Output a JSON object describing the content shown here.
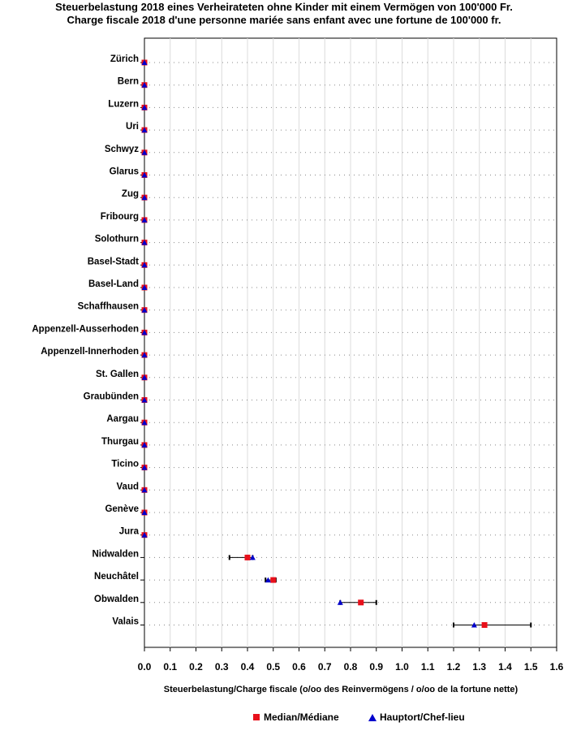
{
  "chart_data": {
    "type": "scatter",
    "title": "Steuerbelastung 2018 eines Verheirateten ohne Kinder mit einem Vermögen von 100'000 Fr.",
    "subtitle": "Charge fiscale 2018 d'une personne mariée sans enfant avec une fortune de 100'000 fr.",
    "xlabel": "Steuerbelastung/Charge fiscale (o/oo des Reinvermögens / o/oo de la fortune nette)",
    "xlim": [
      0,
      1.6
    ],
    "xticks": [
      "0.0",
      "0.1",
      "0.2",
      "0.3",
      "0.4",
      "0.5",
      "0.6",
      "0.7",
      "0.8",
      "0.9",
      "1.0",
      "1.1",
      "1.2",
      "1.3",
      "1.4",
      "1.5",
      "1.6"
    ],
    "grid": true,
    "legend_position": "bottom",
    "colors": {
      "median": "#e8101b",
      "chef_lieu": "#0000cc",
      "range": "#000000"
    },
    "legend": {
      "median": "Median/Médiane",
      "chef_lieu": "Hauptort/Chef-lieu"
    },
    "categories": [
      "Zürich",
      "Bern",
      "Luzern",
      "Uri",
      "Schwyz",
      "Glarus",
      "Zug",
      "Fribourg",
      "Solothurn",
      "Basel-Stadt",
      "Basel-Land",
      "Schaffhausen",
      "Appenzell-Ausserhoden",
      "Appenzell-Innerhoden",
      "St. Gallen",
      "Graubünden",
      "Aargau",
      "Thurgau",
      "Ticino",
      "Vaud",
      "Genève",
      "Jura",
      "Nidwalden",
      "Neuchâtel",
      "Obwalden",
      "Valais"
    ],
    "series": [
      {
        "name": "Median/Médiane",
        "values": [
          0,
          0,
          0,
          0,
          0,
          0,
          0,
          0,
          0,
          0,
          0,
          0,
          0,
          0,
          0,
          0,
          0,
          0,
          0,
          0,
          0,
          0,
          0.4,
          0.5,
          0.84,
          1.32
        ]
      },
      {
        "name": "Hauptort/Chef-lieu",
        "values": [
          0,
          0,
          0,
          0,
          0,
          0,
          0,
          0,
          0,
          0,
          0,
          0,
          0,
          0,
          0,
          0,
          0,
          0,
          0,
          0,
          0,
          0,
          0.42,
          0.48,
          0.76,
          1.28
        ]
      }
    ],
    "ranges": [
      [
        0,
        0
      ],
      [
        0,
        0
      ],
      [
        0,
        0
      ],
      [
        0,
        0
      ],
      [
        0,
        0
      ],
      [
        0,
        0
      ],
      [
        0,
        0
      ],
      [
        0,
        0
      ],
      [
        0,
        0
      ],
      [
        0,
        0
      ],
      [
        0,
        0
      ],
      [
        0,
        0
      ],
      [
        0,
        0
      ],
      [
        0,
        0
      ],
      [
        0,
        0
      ],
      [
        0,
        0
      ],
      [
        0,
        0
      ],
      [
        0,
        0
      ],
      [
        0,
        0
      ],
      [
        0,
        0
      ],
      [
        0,
        0
      ],
      [
        0,
        0
      ],
      [
        0.33,
        0.42
      ],
      [
        0.47,
        0.51
      ],
      [
        0.76,
        0.9
      ],
      [
        1.2,
        1.5
      ]
    ]
  }
}
